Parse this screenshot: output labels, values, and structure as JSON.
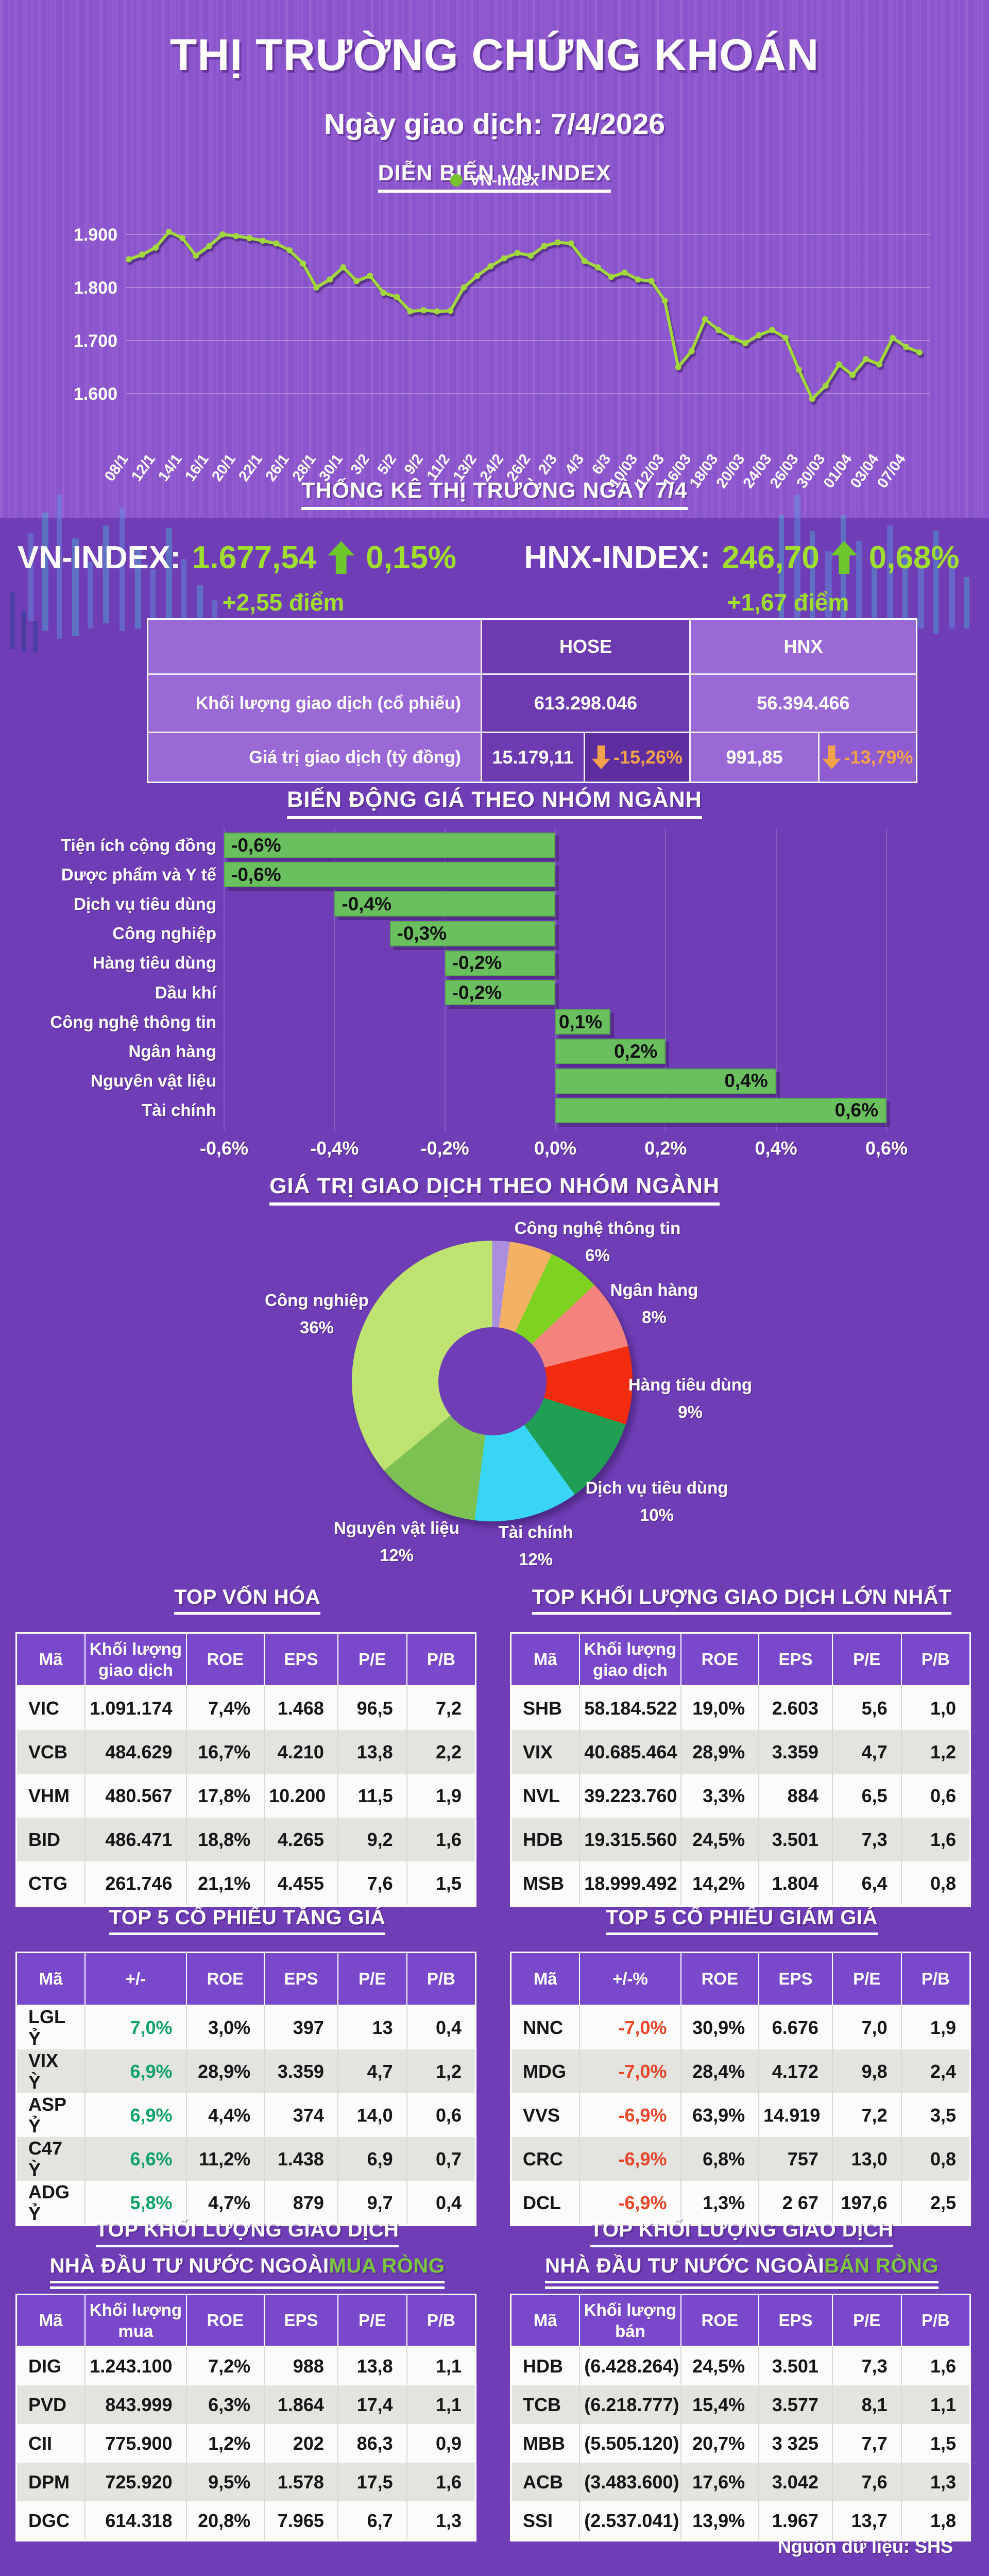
{
  "header": {
    "title": "THỊ TRƯỜNG CHỨNG KHOÁN",
    "date_line": "Ngày giao dịch: 7/4/2026",
    "section_title": "DIỄN BIẾN VN-INDEX",
    "legend": "VN-Index"
  },
  "stats": {
    "title": "THỐNG KÊ THỊ TRƯỜNG NGÀY 7/4",
    "vn_index": {
      "label": "VN-INDEX:",
      "value": "1.677,54",
      "pct": "0,15%",
      "diff": "+2,55 điểm"
    },
    "hnx_index": {
      "label": "HNX-INDEX:",
      "value": "246,70",
      "pct": "0,68%",
      "diff": "+1,67 điểm"
    }
  },
  "market_table": {
    "col1": "HOSE",
    "col2": "HNX",
    "rows": [
      {
        "label": "Khối lượng giao dịch (cổ phiếu)",
        "hose": "613.298.046",
        "hnx": "56.394.466"
      },
      {
        "label": "Giá trị giao dịch (tỷ đồng)",
        "hose": "15.179,11",
        "hose_pct": "-15,26%",
        "hnx": "991,85",
        "hnx_pct": "-13,79%"
      }
    ]
  },
  "chart_data": [
    {
      "type": "line",
      "title": "DIỄN BIẾN VN-INDEX",
      "legend": "VN-Index",
      "line_color": "#a0d83e",
      "ylim": [
        1550,
        1950
      ],
      "yticks": [
        {
          "label": "1.900",
          "value": 1900
        },
        {
          "label": "1.800",
          "value": 1800
        },
        {
          "label": "1.700",
          "value": 1700
        },
        {
          "label": "1.600",
          "value": 1600
        }
      ],
      "x_labels": [
        "08/1",
        "12/1",
        "14/1",
        "16/1",
        "20/1",
        "22/1",
        "26/1",
        "28/1",
        "30/1",
        "3/2",
        "5/2",
        "9/2",
        "11/2",
        "13/2",
        "24/2",
        "26/2",
        "2/3",
        "4/3",
        "6/3",
        "10/03",
        "12/03",
        "16/03",
        "18/03",
        "20/03",
        "24/03",
        "26/03",
        "30/03",
        "01/04",
        "03/04",
        "07/04"
      ],
      "series": [
        {
          "name": "VN-Index",
          "values": [
            1853,
            1862,
            1875,
            1905,
            1893,
            1860,
            1878,
            1900,
            1897,
            1893,
            1888,
            1883,
            1870,
            1845,
            1800,
            1815,
            1838,
            1812,
            1822,
            1790,
            1782,
            1755,
            1757,
            1755,
            1756,
            1800,
            1822,
            1840,
            1855,
            1865,
            1860,
            1878,
            1885,
            1883,
            1850,
            1838,
            1820,
            1828,
            1815,
            1812,
            1775,
            1650,
            1680,
            1740,
            1720,
            1705,
            1695,
            1710,
            1720,
            1705,
            1645,
            1590,
            1615,
            1655,
            1635,
            1665,
            1655,
            1705,
            1688,
            1677.54
          ]
        }
      ]
    },
    {
      "type": "bar",
      "title": "BIẾN ĐỘNG GIÁ THEO NHÓM NGÀNH",
      "orientation": "horizontal",
      "bar_color": "#6abf5e",
      "xlim": [
        -0.6,
        0.6
      ],
      "categories": [
        "Tiện ích cộng đồng",
        "Dược phẩm và Y tế",
        "Dịch vụ tiêu dùng",
        "Công nghiệp",
        "Hàng tiêu dùng",
        "Dầu khí",
        "Công nghệ thông tin",
        "Ngân hàng",
        "Nguyên vật liệu",
        "Tài chính"
      ],
      "values": [
        -0.6,
        -0.6,
        -0.4,
        -0.3,
        -0.2,
        -0.2,
        0.1,
        0.2,
        0.4,
        0.6
      ],
      "value_labels": [
        "-0,6%",
        "-0,6%",
        "-0,4%",
        "-0,3%",
        "-0,2%",
        "-0,2%",
        "0,1%",
        "0,2%",
        "0,4%",
        "0,6%"
      ],
      "x_ticks": [
        {
          "label": "-0,6%",
          "value": -0.6
        },
        {
          "label": "-0,4%",
          "value": -0.4
        },
        {
          "label": "-0,2%",
          "value": -0.2
        },
        {
          "label": "0,0%",
          "value": 0
        },
        {
          "label": "0,2%",
          "value": 0.2
        },
        {
          "label": "0,4%",
          "value": 0.4
        },
        {
          "label": "0,6%",
          "value": 0.6
        }
      ]
    },
    {
      "type": "pie",
      "title": "GIÁ TRỊ GIAO DỊCH THEO NHÓM NGÀNH",
      "donut": true,
      "slices": [
        {
          "name": "",
          "pct": 2,
          "pct_label": "",
          "color": "#ab8ee0"
        },
        {
          "name": "",
          "pct": 5,
          "pct_label": "",
          "color": "#f5b163"
        },
        {
          "name": "Công nghệ thông tin",
          "pct": 6,
          "pct_label": "6%",
          "color": "#7ed321"
        },
        {
          "name": "Ngân hàng",
          "pct": 8,
          "pct_label": "8%",
          "color": "#f4837d"
        },
        {
          "name": "Hàng tiêu dùng",
          "pct": 9,
          "pct_label": "9%",
          "color": "#f32c0f"
        },
        {
          "name": "Dịch vụ tiêu dùng",
          "pct": 10,
          "pct_label": "10%",
          "color": "#1f9e54"
        },
        {
          "name": "Tài chính",
          "pct": 12,
          "pct_label": "12%",
          "color": "#38d5f4"
        },
        {
          "name": "Nguyên vật liệu",
          "pct": 12,
          "pct_label": "12%",
          "color": "#7cc152"
        },
        {
          "name": "Công nghiệp",
          "pct": 36,
          "pct_label": "36%",
          "color": "#bfe370"
        }
      ]
    }
  ],
  "tables": {
    "top_von_hoa": {
      "title": "TOP VỐN HÓA",
      "columns": [
        "Mã",
        "Khối lượng giao dịch",
        "ROE",
        "EPS",
        "P/E",
        "P/B"
      ],
      "rows": [
        [
          "VIC",
          "1.091.174",
          "7,4%",
          "1.468",
          "96,5",
          "7,2"
        ],
        [
          "VCB",
          "484.629",
          "16,7%",
          "4.210",
          "13,8",
          "2,2"
        ],
        [
          "VHM",
          "480.567",
          "17,8%",
          "10.200",
          "11,5",
          "1,9"
        ],
        [
          "BID",
          "486.471",
          "18,8%",
          "4.265",
          "9,2",
          "1,6"
        ],
        [
          "CTG",
          "261.746",
          "21,1%",
          "4.455",
          "7,6",
          "1,5"
        ]
      ]
    },
    "top_klgd": {
      "title": "TOP KHỐI LƯỢNG GIAO DỊCH LỚN NHẤT",
      "columns": [
        "Mã",
        "Khối lượng giao dịch",
        "ROE",
        "EPS",
        "P/E",
        "P/B"
      ],
      "rows": [
        [
          "SHB",
          "58.184.522",
          "19,0%",
          "2.603",
          "5,6",
          "1,0"
        ],
        [
          "VIX",
          "40.685.464",
          "28,9%",
          "3.359",
          "4,7",
          "1,2"
        ],
        [
          "NVL",
          "39.223.760",
          "3,3%",
          "884",
          "6,5",
          "0,6"
        ],
        [
          "HDB",
          "19.315.560",
          "24,5%",
          "3.501",
          "7,3",
          "1,6"
        ],
        [
          "MSB",
          "18.999.492",
          "14,2%",
          "1.804",
          "6,4",
          "0,8"
        ]
      ]
    },
    "tang_gia": {
      "title": "TOP 5 CỔ PHIẾU TĂNG GIÁ",
      "columns": [
        "Mã",
        "+/-",
        "ROE",
        "EPS",
        "P/E",
        "P/B"
      ],
      "accent_col": 1,
      "accent_class": "gain",
      "rows": [
        [
          "LGL Ỷ",
          "7,0%",
          "3,0%",
          "397",
          "13",
          "0,4"
        ],
        [
          "VIX Ỳ",
          "6,9%",
          "28,9%",
          "3.359",
          "4,7",
          "1,2"
        ],
        [
          "ASP Ỷ",
          "6,9%",
          "4,4%",
          "374",
          "14,0",
          "0,6"
        ],
        [
          "C47 Ỳ",
          "6,6%",
          "11,2%",
          "1.438",
          "6,9",
          "0,7"
        ],
        [
          "ADG Ỷ",
          "5,8%",
          "4,7%",
          "879",
          "9,7",
          "0,4"
        ]
      ]
    },
    "giam_gia": {
      "title": "TOP 5 CỔ PHIẾU GIẢM GIÁ",
      "columns": [
        "Mã",
        "+/-%",
        "ROE",
        "EPS",
        "P/E",
        "P/B"
      ],
      "accent_col": 1,
      "accent_class": "loss",
      "rows": [
        [
          "NNC",
          "-7,0%",
          "30,9%",
          "6.676",
          "7,0",
          "1,9"
        ],
        [
          "MDG",
          "-7,0%",
          "28,4%",
          "4.172",
          "9,8",
          "2,4"
        ],
        [
          "VVS",
          "-6,9%",
          "63,9%",
          "14.919",
          "7,2",
          "3,5"
        ],
        [
          "CRC",
          "-6,9%",
          "6,8%",
          "757",
          "13,0",
          "0,8"
        ],
        [
          "DCL",
          "-6,9%",
          "1,3%",
          "2 67",
          "197,6",
          "2,5"
        ]
      ]
    },
    "mua_rong": {
      "title_line1": "TOP KHỐI LƯỢNG GIAO DỊCH",
      "title_line2_prefix": "NHÀ ĐẦU TƯ NƯỚC NGOÀI ",
      "title_accent": "MUA RÒNG",
      "columns": [
        "Mã",
        "Khối lượng mua",
        "ROE",
        "EPS",
        "P/E",
        "P/B"
      ],
      "rows": [
        [
          "DIG",
          "1.243.100",
          "7,2%",
          "988",
          "13,8",
          "1,1"
        ],
        [
          "PVD",
          "843.999",
          "6,3%",
          "1.864",
          "17,4",
          "1,1"
        ],
        [
          "CII",
          "775.900",
          "1,2%",
          "202",
          "86,3",
          "0,9"
        ],
        [
          "DPM",
          "725.920",
          "9,5%",
          "1.578",
          "17,5",
          "1,6"
        ],
        [
          "DGC",
          "614.318",
          "20,8%",
          "7.965",
          "6,7",
          "1,3"
        ]
      ]
    },
    "ban_rong": {
      "title_line1": "TOP KHỐI LƯỢNG GIAO DỊCH",
      "title_line2_prefix": "NHÀ ĐẦU TƯ NƯỚC NGOÀI ",
      "title_accent": "BÁN RÒNG",
      "columns": [
        "Mã",
        "Khối lượng bán",
        "ROE",
        "EPS",
        "P/E",
        "P/B"
      ],
      "rows": [
        [
          "HDB",
          "(6.428.264)",
          "24,5%",
          "3.501",
          "7,3",
          "1,6"
        ],
        [
          "TCB",
          "(6.218.777)",
          "15,4%",
          "3.577",
          "8,1",
          "1,1"
        ],
        [
          "MBB",
          "(5.505.120)",
          "20,7%",
          "3 325",
          "7,7",
          "1,5"
        ],
        [
          "ACB",
          "(3.483.600)",
          "17,6%",
          "3.042",
          "7,6",
          "1,3"
        ],
        [
          "SSI",
          "(2.537.041)",
          "13,9%",
          "1.967",
          "13,7",
          "1,8"
        ]
      ]
    }
  },
  "footer": {
    "source": "Nguồn dữ liệu: SHS"
  },
  "colors": {
    "background": "#6f3db5",
    "hero_band": "#8a54cd",
    "accent_value_green": "#9fdd2f",
    "up_arrow_green": "#6fc72e",
    "down_pct_orange": "#f2a24b",
    "gain_green": "#0fa36b",
    "loss_red": "#e8472b",
    "line_green": "#a0d83e",
    "bar_green": "#6abf5e",
    "title_accent_green": "#7cc63f"
  }
}
